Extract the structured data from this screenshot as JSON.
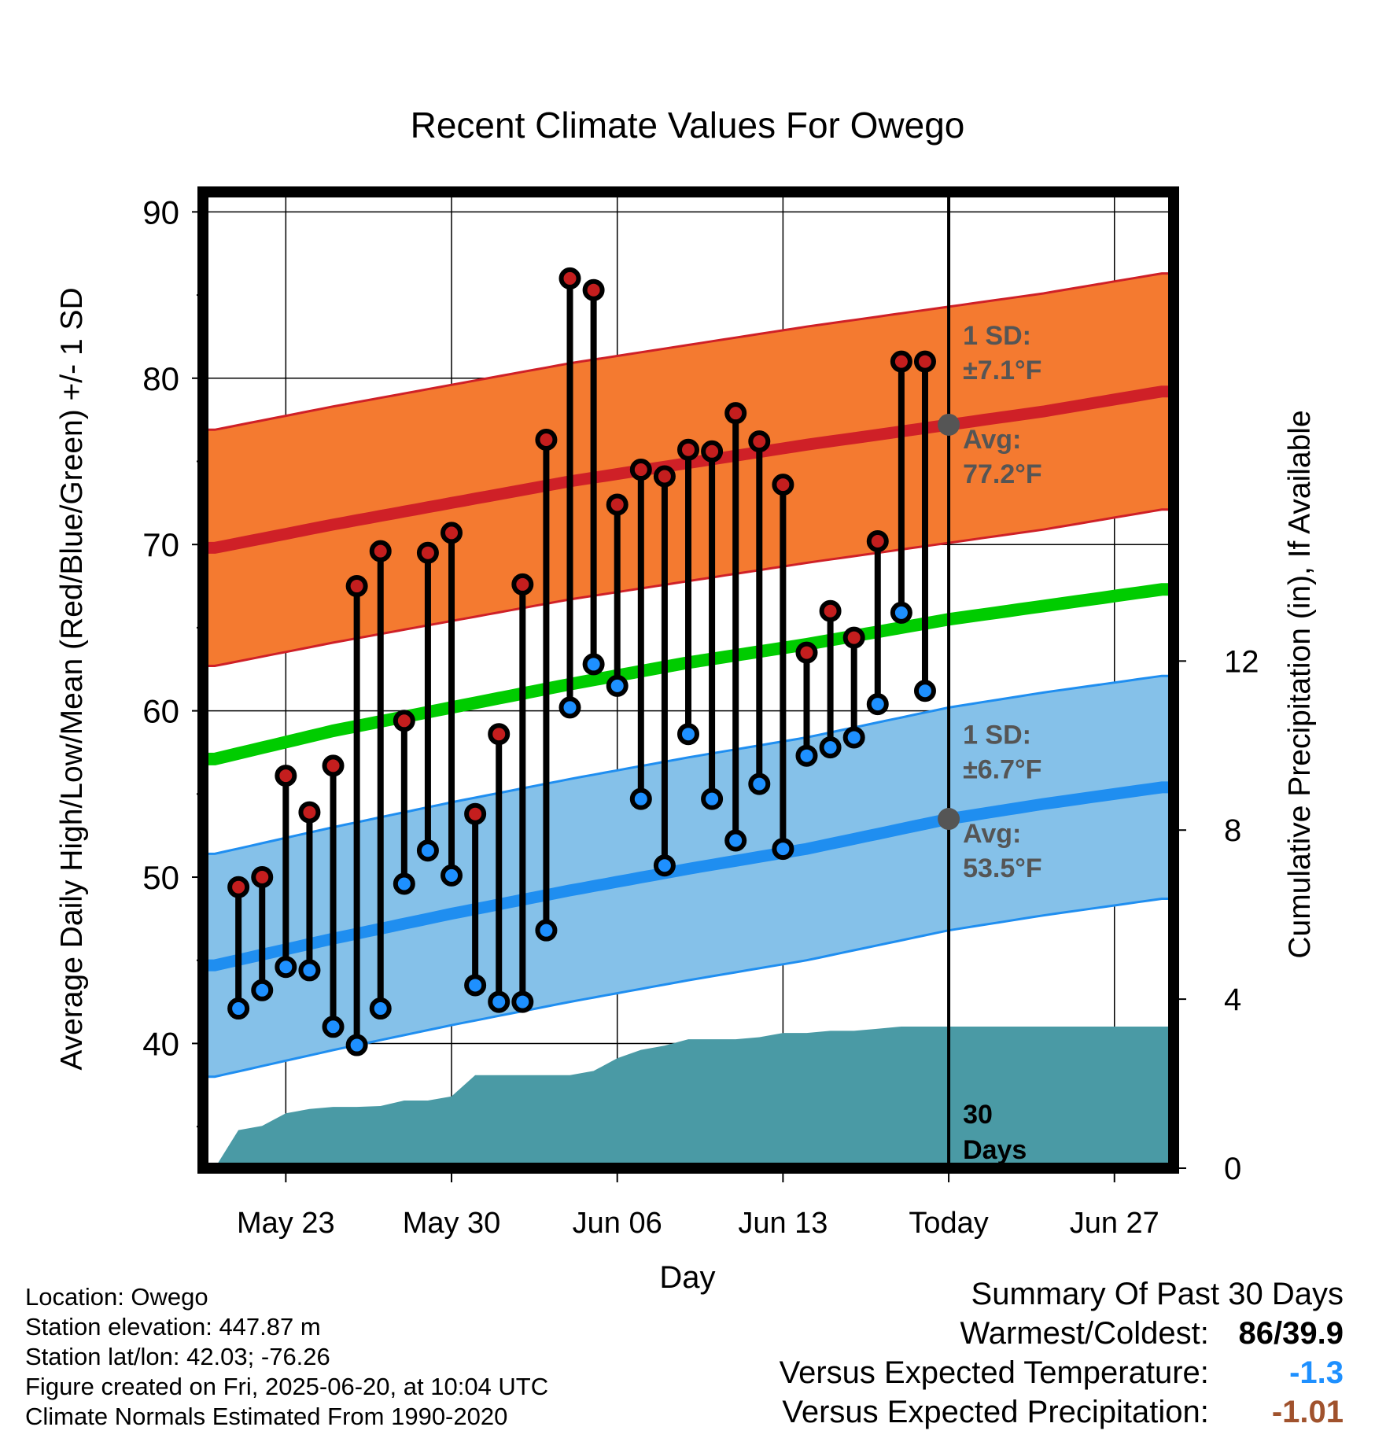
{
  "chart_data": {
    "type": "line",
    "title": "Recent Climate Values For Owego",
    "xlabel": "Day",
    "ylabel_left": "Average Daily High/Low/Mean (Red/Blue/Green) +/- 1 SD",
    "ylabel_right": "Cumulative Precipitation (in), If Available",
    "y_left_range": [
      32.5,
      91.2
    ],
    "y_left_ticks": [
      40,
      50,
      60,
      70,
      80,
      90
    ],
    "y_right_range": [
      0,
      23.1
    ],
    "y_right_ticks": [
      0,
      4,
      8,
      12
    ],
    "x_range_days": [
      -0.5,
      40.5
    ],
    "x_ticks": [
      {
        "day": 3,
        "label": "May 23"
      },
      {
        "day": 10,
        "label": "May 30"
      },
      {
        "day": 17,
        "label": "Jun 06"
      },
      {
        "day": 24,
        "label": "Jun 13"
      },
      {
        "day": 31,
        "label": "Today"
      },
      {
        "day": 38,
        "label": "Jun 27"
      }
    ],
    "grid": true,
    "today_day": 31,
    "normals": {
      "x": [
        0,
        5,
        10,
        15,
        20,
        25,
        31,
        35,
        40
      ],
      "high_avg": [
        69.8,
        71.2,
        72.5,
        73.8,
        74.9,
        76.0,
        77.2,
        78.0,
        79.2
      ],
      "high_sd": 7.1,
      "low_avg": [
        44.7,
        46.3,
        47.8,
        49.2,
        50.5,
        51.7,
        53.5,
        54.4,
        55.4
      ],
      "low_sd": 6.7,
      "mean_avg": [
        57.1,
        58.8,
        60.2,
        61.6,
        62.9,
        64.0,
        65.5,
        66.3,
        67.3
      ]
    },
    "days": [
      1,
      2,
      3,
      4,
      5,
      6,
      7,
      8,
      9,
      10,
      11,
      12,
      13,
      14,
      15,
      16,
      17,
      18,
      19,
      20,
      21,
      22,
      23,
      24,
      25,
      26,
      27,
      28,
      29,
      30
    ],
    "series": [
      {
        "name": "High",
        "color": "#c41e1e",
        "values": [
          49.4,
          50.0,
          56.1,
          53.9,
          56.7,
          67.5,
          69.6,
          59.4,
          69.5,
          70.7,
          53.8,
          58.6,
          67.6,
          76.3,
          86.0,
          85.3,
          72.4,
          74.5,
          74.1,
          75.7,
          75.6,
          77.9,
          76.2,
          73.6,
          63.5,
          66.0,
          64.4,
          70.2,
          81.0,
          81.0
        ]
      },
      {
        "name": "Low",
        "color": "#1e90ff",
        "values": [
          42.1,
          43.2,
          44.6,
          44.4,
          41.0,
          39.9,
          42.1,
          49.6,
          51.6,
          50.1,
          43.5,
          42.5,
          42.5,
          46.8,
          60.2,
          62.8,
          61.5,
          54.7,
          50.7,
          58.6,
          54.7,
          52.2,
          55.6,
          51.7,
          57.3,
          57.8,
          58.4,
          60.4,
          65.9,
          61.2
        ]
      }
    ],
    "precipitation": {
      "x": [
        0,
        1,
        2,
        3,
        4,
        5,
        6,
        7,
        8,
        9,
        10,
        11,
        12,
        13,
        14,
        15,
        16,
        17,
        18,
        19,
        20,
        21,
        22,
        23,
        24,
        25,
        26,
        27,
        28,
        29,
        30,
        31,
        40
      ],
      "cumulative_in": [
        0.0,
        0.9,
        1.0,
        1.3,
        1.4,
        1.45,
        1.45,
        1.47,
        1.6,
        1.6,
        1.7,
        2.2,
        2.2,
        2.2,
        2.2,
        2.2,
        2.3,
        2.6,
        2.8,
        2.9,
        3.05,
        3.05,
        3.05,
        3.1,
        3.2,
        3.2,
        3.25,
        3.25,
        3.3,
        3.35,
        3.35,
        3.35,
        3.35
      ]
    },
    "annotations": {
      "high_sd": "1 SD:",
      "high_sd_value": "±7.1°F",
      "high_avg_label": "Avg:",
      "high_avg_value": "77.2°F",
      "low_sd": "1 SD:",
      "low_sd_value": "±6.7°F",
      "low_avg_label": "Avg:",
      "low_avg_value": "53.5°F",
      "days_count": "30",
      "days_label": "Days"
    },
    "colors": {
      "high_band": "#f47a30",
      "high_line": "#cf2027",
      "low_band": "#85c1e9",
      "low_line": "#1f8ef0",
      "mean_line": "#00cc00",
      "precip": "#4a9aa5",
      "annotation": "#555555"
    }
  },
  "info": {
    "location": "Location: Owego",
    "elevation": "Station elevation: 447.87 m",
    "latlon": "Station lat/lon: 42.03; -76.26",
    "created": "Figure created on Fri, 2025-06-20, at 10:04 UTC",
    "normals": "Climate Normals Estimated From 1990-2020"
  },
  "summary": {
    "title": "Summary Of Past 30 Days",
    "warm_cold_label": "Warmest/Coldest:",
    "warm_cold_value": "86/39.9",
    "temp_label": "Versus Expected Temperature:",
    "temp_value": "-1.3",
    "temp_color": "#1e90ff",
    "precip_label": "Versus Expected Precipitation:",
    "precip_value": "-1.01",
    "precip_color": "#a0522d"
  }
}
